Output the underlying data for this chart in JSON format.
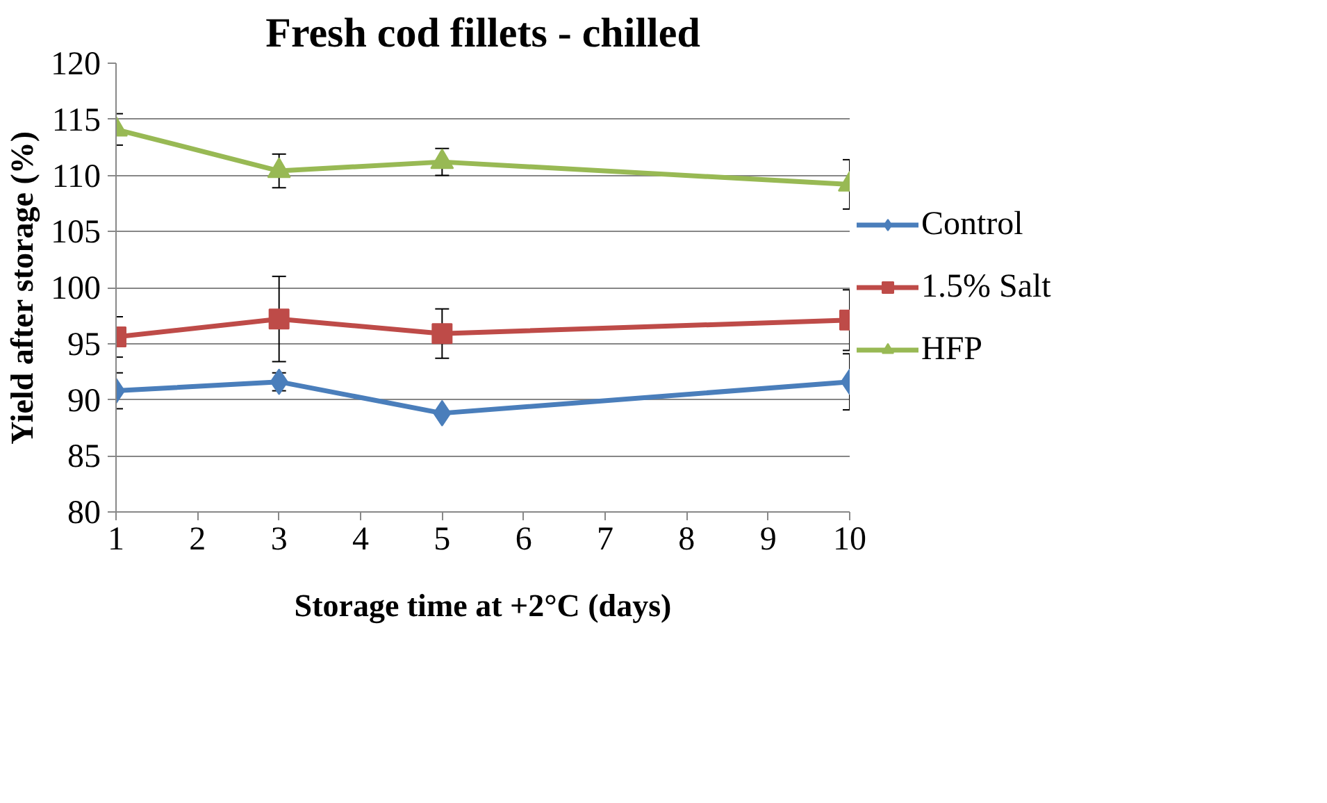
{
  "chart_data": {
    "type": "line",
    "title": "Fresh cod fillets - chilled",
    "xlabel": "Storage time at +2°C (days)",
    "ylabel": "Yield after storage (%)",
    "x": [
      1,
      3,
      5,
      10
    ],
    "series": [
      {
        "name": "Control",
        "color": "#4a7ebb",
        "marker": "diamond",
        "values": [
          90.8,
          91.6,
          88.8,
          91.6
        ],
        "errors": [
          1.6,
          0.8,
          null,
          2.5
        ]
      },
      {
        "name": "1.5% Salt",
        "color": "#be4b48",
        "marker": "square",
        "values": [
          95.6,
          97.2,
          95.9,
          97.1
        ],
        "errors": [
          1.8,
          3.8,
          2.2,
          2.7
        ]
      },
      {
        "name": "HFP",
        "color": "#98b954",
        "marker": "triangle",
        "values": [
          114.1,
          110.4,
          111.2,
          109.2
        ],
        "errors": [
          1.4,
          1.5,
          1.2,
          2.2
        ]
      }
    ],
    "xlim": [
      1,
      10
    ],
    "xticks": [
      1,
      2,
      3,
      4,
      5,
      6,
      7,
      8,
      9,
      10
    ],
    "ylim": [
      80,
      120
    ],
    "yticks": [
      80,
      85,
      90,
      95,
      100,
      105,
      110,
      115,
      120
    ],
    "grid": "y",
    "legend": "right",
    "line_style": "solid"
  }
}
